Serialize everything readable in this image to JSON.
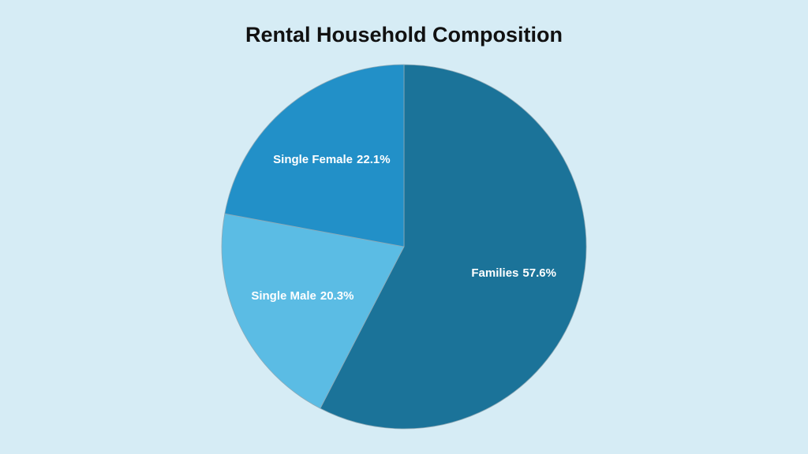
{
  "chart_data": {
    "type": "pie",
    "title": "Rental Household Composition",
    "categories": [
      "Families",
      "Single Male",
      "Single Female"
    ],
    "values": [
      57.6,
      20.3,
      22.1
    ],
    "value_labels": [
      "57.6%",
      "20.3%",
      "22.1%"
    ],
    "colors": [
      "#1b7399",
      "#5bbce4",
      "#2290c8"
    ]
  }
}
